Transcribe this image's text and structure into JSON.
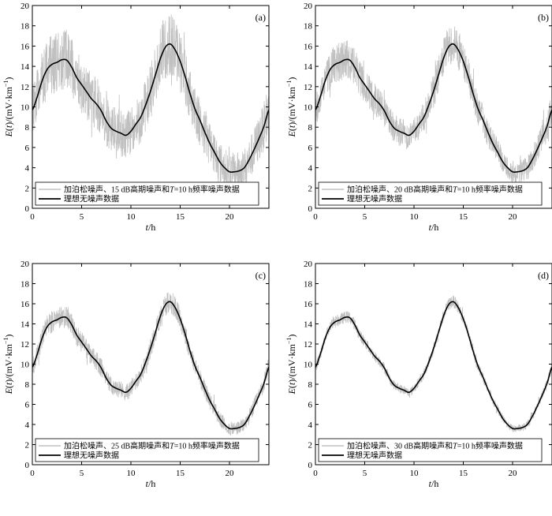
{
  "figure": {
    "legend_noisy_template": "加泊松噪声、{db} dB高期噪声和T=10 h频率噪声数据",
    "legend_ideal": "理想无噪声数据",
    "ylabel": "E(t)/(mV·km⁻¹)",
    "xlabel": "t/h",
    "colors": {
      "noisy": "#c0c0c0",
      "ideal": "#000000",
      "axis": "#000000"
    }
  },
  "chart_data": [
    {
      "type": "line",
      "panel": "(a)",
      "noise_db": 15,
      "noise_amplitude": 2.6,
      "xlim": [
        0,
        24
      ],
      "ylim": [
        0,
        20
      ],
      "xticks": [
        0,
        5,
        10,
        15,
        20
      ],
      "yticks": [
        0,
        2,
        4,
        6,
        8,
        10,
        12,
        14,
        16,
        18,
        20
      ],
      "legend_position": "bottom-left",
      "series": [
        {
          "name": "加泊松噪声、15 dB高期噪声和T=10 h频率噪声数据",
          "color": "#c0c0c0",
          "style": "noisy"
        },
        {
          "name": "理想无噪声数据",
          "color": "#000000",
          "style": "ideal"
        }
      ]
    },
    {
      "type": "line",
      "panel": "(b)",
      "noise_db": 20,
      "noise_amplitude": 1.6,
      "xlim": [
        0,
        24
      ],
      "ylim": [
        0,
        20
      ],
      "xticks": [
        0,
        5,
        10,
        15,
        20
      ],
      "yticks": [
        0,
        2,
        4,
        6,
        8,
        10,
        12,
        14,
        16,
        18,
        20
      ],
      "legend_position": "bottom-left",
      "series": [
        {
          "name": "加泊松噪声、20 dB高期噪声和T=10 h频率噪声数据",
          "color": "#c0c0c0",
          "style": "noisy"
        },
        {
          "name": "理想无噪声数据",
          "color": "#000000",
          "style": "ideal"
        }
      ]
    },
    {
      "type": "line",
      "panel": "(c)",
      "noise_db": 25,
      "noise_amplitude": 0.95,
      "xlim": [
        0,
        24
      ],
      "ylim": [
        0,
        20
      ],
      "xticks": [
        0,
        5,
        10,
        15,
        20
      ],
      "yticks": [
        0,
        2,
        4,
        6,
        8,
        10,
        12,
        14,
        16,
        18,
        20
      ],
      "legend_position": "bottom-left",
      "series": [
        {
          "name": "加泊松噪声、25 dB高期噪声和T=10 h频率噪声数据",
          "color": "#c0c0c0",
          "style": "noisy"
        },
        {
          "name": "理想无噪声数据",
          "color": "#000000",
          "style": "ideal"
        }
      ]
    },
    {
      "type": "line",
      "panel": "(d)",
      "noise_db": 30,
      "noise_amplitude": 0.5,
      "xlim": [
        0,
        24
      ],
      "ylim": [
        0,
        20
      ],
      "xticks": [
        0,
        5,
        10,
        15,
        20
      ],
      "yticks": [
        0,
        2,
        4,
        6,
        8,
        10,
        12,
        14,
        16,
        18,
        20
      ],
      "legend_position": "bottom-left",
      "series": [
        {
          "name": "加泊松噪声、30 dB高期噪声和T=10 h频率噪声数据",
          "color": "#c0c0c0",
          "style": "noisy"
        },
        {
          "name": "理想无噪声数据",
          "color": "#000000",
          "style": "ideal"
        }
      ]
    }
  ],
  "ideal_curve": {
    "t": [
      0,
      0.5,
      1,
      1.5,
      2,
      2.5,
      3,
      3.5,
      4,
      4.5,
      5,
      5.5,
      6,
      6.5,
      7,
      7.5,
      8,
      8.5,
      9,
      9.5,
      10,
      10.5,
      11,
      11.5,
      12,
      12.5,
      13,
      13.5,
      14,
      14.5,
      15,
      15.5,
      16,
      16.5,
      17,
      17.5,
      18,
      18.5,
      19,
      19.5,
      20,
      20.5,
      21,
      21.5,
      22,
      22.5,
      23,
      23.5,
      24
    ],
    "e": [
      9.7,
      11.0,
      12.6,
      13.7,
      14.2,
      14.4,
      14.65,
      14.6,
      13.9,
      12.9,
      12.2,
      11.5,
      10.8,
      10.3,
      9.6,
      8.6,
      7.9,
      7.6,
      7.4,
      7.2,
      7.6,
      8.3,
      9.0,
      10.2,
      11.6,
      13.2,
      14.8,
      15.9,
      16.2,
      15.6,
      14.5,
      13.0,
      11.3,
      9.8,
      8.7,
      7.5,
      6.4,
      5.5,
      4.6,
      4.0,
      3.6,
      3.6,
      3.7,
      4.0,
      4.8,
      5.8,
      6.9,
      8.1,
      9.7
    ]
  }
}
